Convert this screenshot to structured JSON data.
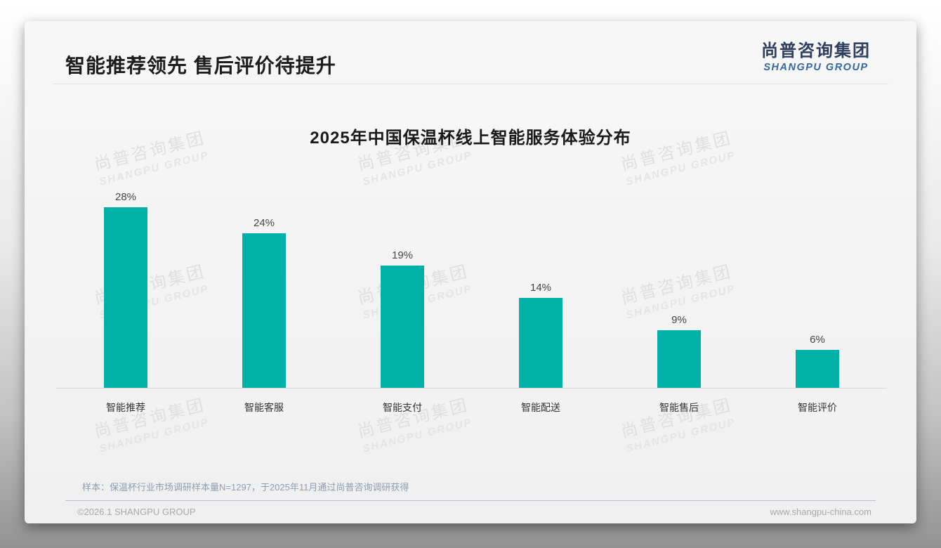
{
  "header": {
    "title": "智能推荐领先 售后评价待提升",
    "logo_cn": "尚普咨询集团",
    "logo_en": "SHANGPU GROUP"
  },
  "chart_data": {
    "type": "bar",
    "title": "2025年中国保温杯线上智能服务体验分布",
    "categories": [
      "智能推荐",
      "智能客服",
      "智能支付",
      "智能配送",
      "智能售后",
      "智能评价"
    ],
    "values": [
      28,
      24,
      19,
      14,
      9,
      6
    ],
    "value_labels": [
      "28%",
      "24%",
      "19%",
      "14%",
      "9%",
      "6%"
    ],
    "xlabel": "",
    "ylabel": "",
    "ylim": [
      0,
      30
    ],
    "grid": false,
    "legend": "none",
    "bar_color": "#00b1a7"
  },
  "watermark": {
    "cn": "尚普咨询集团",
    "en": "SHANGPU GROUP"
  },
  "footnote": {
    "text": "样本：保温杯行业市场调研样本量N=1297，于2025年11月通过尚普咨询调研获得"
  },
  "footer": {
    "left": "©2026.1 SHANGPU GROUP",
    "right": "www.shangpu-china.com"
  },
  "colors": {
    "bar": "#00b1a7",
    "logo_cn": "#2d3e5f",
    "logo_en": "#35689f",
    "note_text": "#8e9cb0",
    "footer_text": "#a8a8a8",
    "watermark": "#dfdfdf"
  }
}
